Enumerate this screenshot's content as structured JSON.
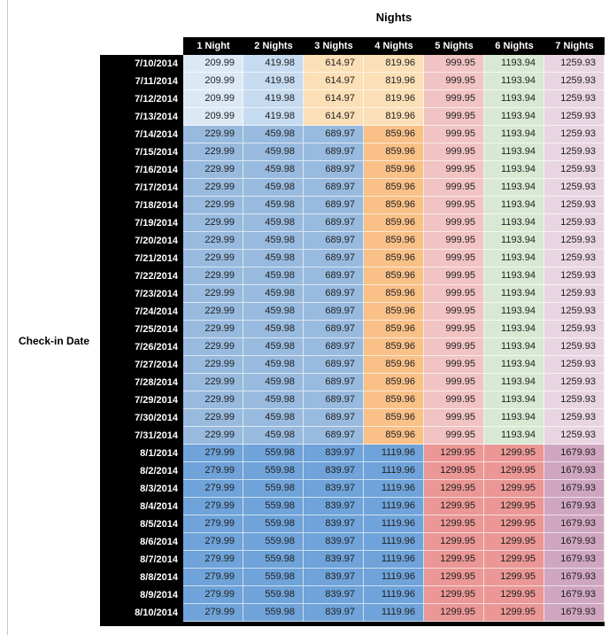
{
  "title": "Nights",
  "row_axis_label": "Check-in Date",
  "chart_data": {
    "type": "table",
    "title": "Nights",
    "row_axis_label": "Check-in Date",
    "columns": [
      "1 Night",
      "2 Nights",
      "3 Nights",
      "4 Nights",
      "5 Nights",
      "6 Nights",
      "7 Nights"
    ],
    "row_groups": [
      {
        "name": "early-july",
        "dates": [
          "7/10/2014",
          "7/11/2014",
          "7/12/2014",
          "7/13/2014"
        ],
        "values": [
          209.99,
          419.98,
          614.97,
          819.96,
          999.95,
          1193.94,
          1259.93
        ]
      },
      {
        "name": "mid-july",
        "dates": [
          "7/14/2014",
          "7/15/2014",
          "7/16/2014",
          "7/17/2014",
          "7/18/2014",
          "7/19/2014",
          "7/20/2014",
          "7/21/2014",
          "7/22/2014",
          "7/23/2014",
          "7/24/2014",
          "7/25/2014",
          "7/26/2014",
          "7/27/2014",
          "7/28/2014",
          "7/29/2014",
          "7/30/2014",
          "7/31/2014"
        ],
        "values": [
          229.99,
          459.98,
          689.97,
          859.96,
          999.95,
          1193.94,
          1259.93
        ]
      },
      {
        "name": "august",
        "dates": [
          "8/1/2014",
          "8/2/2014",
          "8/3/2014",
          "8/4/2014",
          "8/5/2014",
          "8/6/2014",
          "8/7/2014",
          "8/8/2014",
          "8/9/2014",
          "8/10/2014"
        ],
        "values": [
          279.99,
          559.98,
          839.97,
          1119.96,
          1299.95,
          1299.95,
          1679.93
        ]
      }
    ]
  },
  "styles": {
    "header_bg": "#000000",
    "header_text": "#ffffff",
    "value_text": "#212121",
    "group_cell_colors": {
      "early-july": [
        "#dce9f5",
        "#c6dbf0",
        "#fbdfb6",
        "#fbdfb6",
        "#f2c3c3",
        "#d9e8d3",
        "#e9d5e2"
      ],
      "mid-july": [
        "#98bade",
        "#98bade",
        "#98bade",
        "#f9c088",
        "#f2c3c3",
        "#d9e8d3",
        "#e9d5e2"
      ],
      "august": [
        "#6fa3d9",
        "#6fa3d9",
        "#6fa3d9",
        "#6fa3d9",
        "#ea9795",
        "#ea9795",
        "#cfa6bf"
      ]
    }
  }
}
